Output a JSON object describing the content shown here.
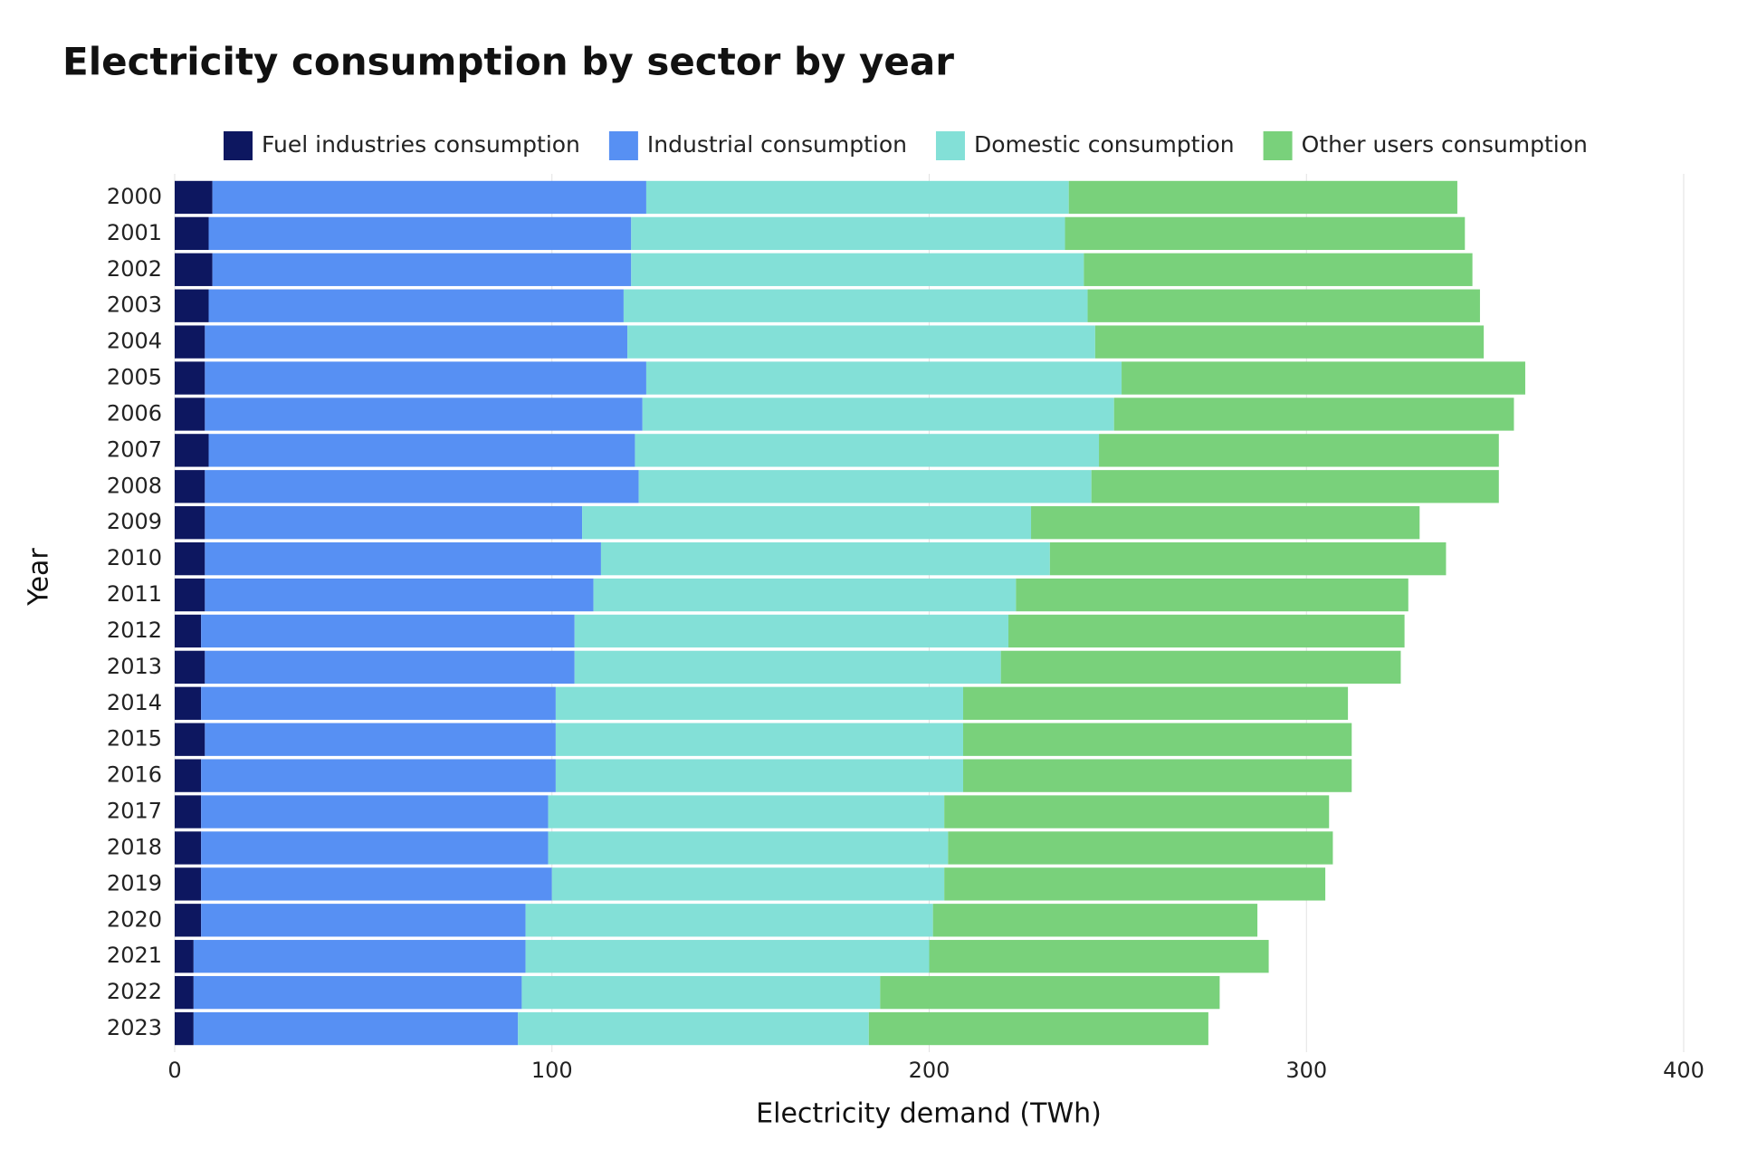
{
  "chart_data": {
    "type": "stacked_bar_horizontal",
    "title": "Electricity consumption by sector by year",
    "x_label": "Electricity demand (TWh)",
    "y_label": "Year",
    "categories": [
      "2000",
      "2001",
      "2002",
      "2003",
      "2004",
      "2005",
      "2006",
      "2007",
      "2008",
      "2009",
      "2010",
      "2011",
      "2012",
      "2013",
      "2014",
      "2015",
      "2016",
      "2017",
      "2018",
      "2019",
      "2020",
      "2021",
      "2022",
      "2023"
    ],
    "series": [
      {
        "name": "Fuel industries consumption",
        "color": "#0d1760",
        "values": [
          10,
          9,
          10,
          9,
          8,
          8,
          8,
          9,
          8,
          8,
          8,
          8,
          7,
          8,
          7,
          8,
          7,
          7,
          7,
          7,
          7,
          5,
          5,
          5
        ]
      },
      {
        "name": "Industrial consumption",
        "color": "#5790f3",
        "values": [
          115,
          112,
          111,
          110,
          112,
          117,
          116,
          113,
          115,
          100,
          105,
          103,
          99,
          98,
          94,
          93,
          94,
          92,
          92,
          93,
          86,
          88,
          87,
          86
        ]
      },
      {
        "name": "Domestic consumption",
        "color": "#83e0d7",
        "values": [
          112,
          115,
          120,
          123,
          124,
          126,
          125,
          123,
          120,
          119,
          119,
          112,
          115,
          113,
          108,
          108,
          108,
          105,
          106,
          104,
          108,
          107,
          95,
          93
        ]
      },
      {
        "name": "Other users consumption",
        "color": "#79d17b",
        "values": [
          103,
          106,
          103,
          104,
          103,
          107,
          106,
          106,
          108,
          103,
          105,
          104,
          105,
          106,
          102,
          103,
          103,
          102,
          102,
          101,
          86,
          90,
          90,
          90
        ]
      }
    ],
    "xlim": [
      0,
      400
    ],
    "xticks": [
      0,
      100,
      200,
      300,
      400
    ],
    "grid": true
  }
}
